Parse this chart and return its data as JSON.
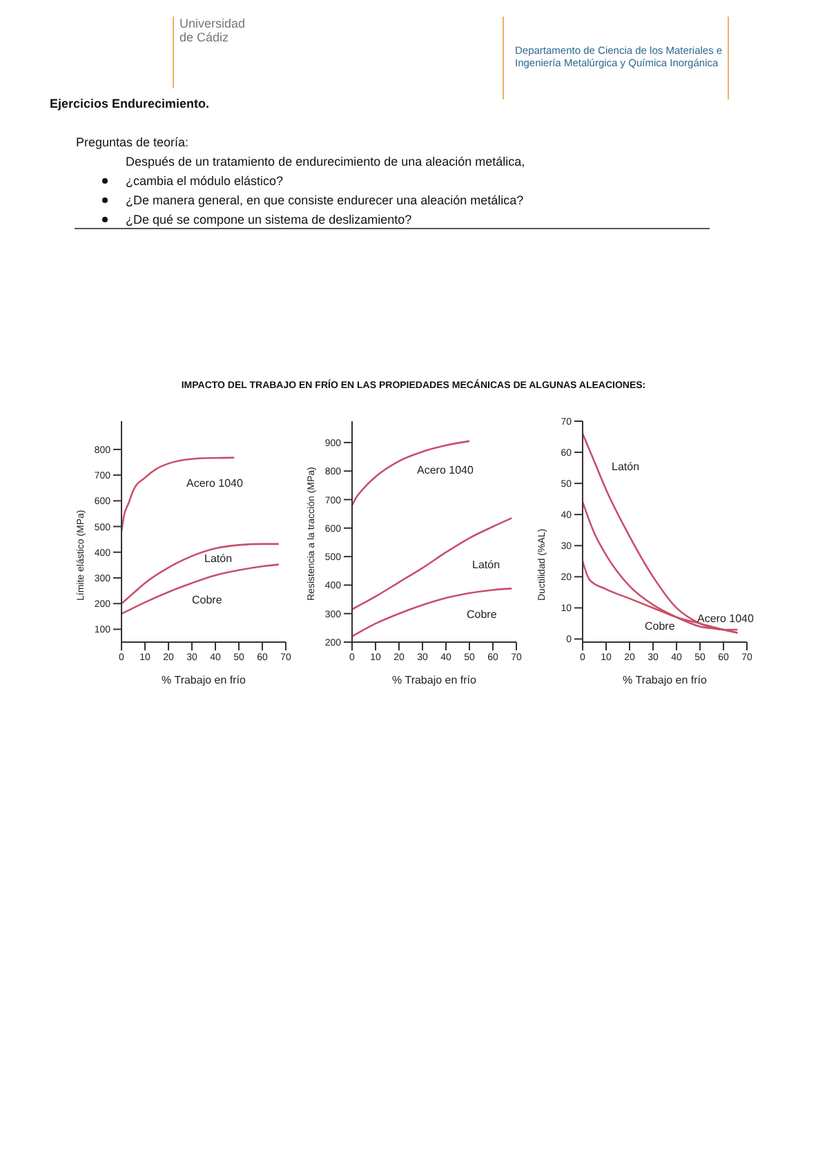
{
  "chart_data": [
    {
      "type": "line",
      "title": "IMPACTO DEL TRABAJO EN FRÍO EN LAS PROPIEDADES MECÁNICAS DE ALGUNAS ALEACIONES:",
      "annotations": [
        "Universidad",
        "de Cádiz",
        "Departamento de Ciencia de los Materiales e",
        "Ingeniería Metalúrgica y Química Inorgánica",
        "Ejercicios Endurecimiento.",
        "Preguntas de teoría:",
        "Después de un tratamiento de endurecimiento de una aleación metálica,",
        "¿cambia el módulo elástico?",
        "¿De manera general, en que consiste endurecer una aleación metálica?",
        "¿De qué se compone un sistema de deslizamiento?"
      ],
      "xlabel": "% Trabajo en frío",
      "ylabel": "Límite elástico (MPa)",
      "legend": false,
      "marker": "none",
      "xlim": [
        0,
        70
      ],
      "xticks": [
        0,
        10,
        20,
        30,
        40,
        50,
        60,
        70
      ],
      "ylim": [
        50,
        910
      ],
      "yticks": [
        100,
        200,
        300,
        400,
        500,
        600,
        700,
        800
      ],
      "series": [
        {
          "name": "Acero 1040",
          "color": "#c8506a",
          "x": [
            0,
            1,
            3,
            5,
            10,
            15,
            20,
            25,
            30,
            40,
            48
          ],
          "values": [
            480,
            540,
            590,
            640,
            690,
            725,
            745,
            757,
            763,
            767,
            768
          ]
        },
        {
          "name": "Latón",
          "color": "#c8506a",
          "x": [
            0,
            5,
            10,
            20,
            30,
            40,
            50,
            60,
            67
          ],
          "values": [
            200,
            240,
            280,
            340,
            385,
            415,
            428,
            432,
            432
          ]
        },
        {
          "name": "Cobre",
          "color": "#c8506a",
          "x": [
            0,
            10,
            20,
            30,
            40,
            50,
            60,
            67
          ],
          "values": [
            160,
            205,
            245,
            280,
            310,
            330,
            345,
            352
          ]
        }
      ]
    },
    {
      "type": "line",
      "xlabel": "% Trabajo en frío",
      "ylabel": "Resistencia a la tracción (MPa)",
      "legend": false,
      "marker": "none",
      "xlim": [
        0,
        70
      ],
      "xticks": [
        0,
        10,
        20,
        30,
        40,
        50,
        60,
        70
      ],
      "ylim": [
        200,
        975
      ],
      "yticks": [
        200,
        300,
        400,
        500,
        600,
        700,
        800,
        900
      ],
      "series": [
        {
          "name": "Acero 1040",
          "color": "#c8506a",
          "x": [
            0,
            2,
            5,
            10,
            20,
            30,
            40,
            50
          ],
          "values": [
            680,
            710,
            740,
            780,
            835,
            868,
            890,
            905
          ]
        },
        {
          "name": "Latón",
          "color": "#c8506a",
          "x": [
            0,
            10,
            20,
            30,
            40,
            50,
            60,
            68
          ],
          "values": [
            315,
            360,
            410,
            460,
            515,
            565,
            605,
            635
          ]
        },
        {
          "name": "Cobre",
          "color": "#c8506a",
          "x": [
            0,
            10,
            20,
            30,
            40,
            50,
            60,
            68
          ],
          "values": [
            220,
            265,
            300,
            330,
            355,
            372,
            383,
            388
          ]
        }
      ]
    },
    {
      "type": "line",
      "xlabel": "% Trabajo en frío",
      "ylabel": "Ductilidad (%AL)",
      "legend": false,
      "marker": "none",
      "xlim": [
        0,
        70
      ],
      "xticks": [
        0,
        10,
        20,
        30,
        40,
        50,
        60,
        70
      ],
      "ylim": [
        -1,
        70
      ],
      "yticks": [
        0,
        10,
        20,
        30,
        40,
        50,
        60,
        70
      ],
      "series": [
        {
          "name": "Latón",
          "color": "#c8506a",
          "x": [
            0,
            5,
            10,
            20,
            30,
            40,
            50,
            60,
            66
          ],
          "values": [
            66,
            57,
            48,
            33,
            20,
            10,
            5,
            3,
            3
          ]
        },
        {
          "name": "Acero 1040",
          "color": "#c8506a",
          "x": [
            0,
            5,
            10,
            20,
            30,
            40,
            50,
            60,
            66
          ],
          "values": [
            44,
            34,
            27,
            17,
            11,
            7,
            4,
            3,
            2
          ]
        },
        {
          "name": "Cobre",
          "color": "#c8506a",
          "x": [
            0,
            3,
            10,
            20,
            30,
            40,
            50,
            60,
            66
          ],
          "values": [
            25,
            19,
            16,
            13,
            10,
            7,
            5,
            3,
            2
          ]
        }
      ]
    }
  ]
}
